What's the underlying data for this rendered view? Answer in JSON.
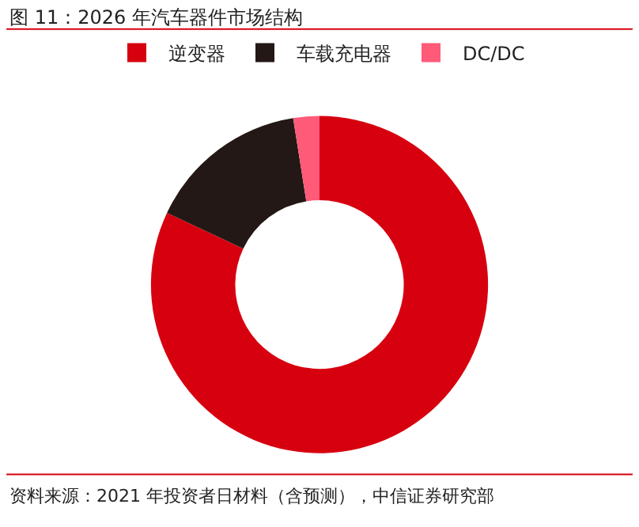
{
  "chart_data": {
    "type": "donut",
    "title": "图 11：2026 年汽车器件市场结构",
    "categories": [
      "逆变器",
      "车载充电器",
      "DC/DC"
    ],
    "values": [
      82,
      15.5,
      2.5
    ],
    "colors": [
      "#d7000f",
      "#231815",
      "#ff5a78"
    ],
    "legend": "top",
    "annotations": [
      "资料来源：2021 年投资者日材料（含预测），中信证券研究部"
    ]
  }
}
